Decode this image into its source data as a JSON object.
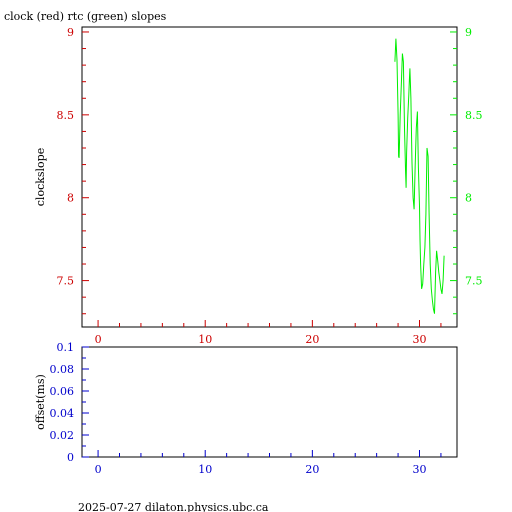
{
  "title": "clock (red) rtc (green) slopes",
  "footer": "2025-07-27  dilaton.physics.ubc.ca",
  "colors": {
    "red": "#cc0000",
    "green": "#00ee00",
    "blue": "#0000cc",
    "frame": "#000000"
  },
  "chart_data": [
    {
      "type": "line",
      "title": "clock (red) rtc (green) slopes",
      "ylabel": "clockslope",
      "xlabel": "",
      "xlim": [
        -1.5,
        33.5
      ],
      "ylim": [
        7.22,
        9.03
      ],
      "x_ticks": [
        0,
        10,
        20,
        30
      ],
      "x_tick_labels": [
        "0",
        "10",
        "20",
        "30"
      ],
      "y_ticks": [
        7.5,
        8,
        8.5,
        9
      ],
      "y_tick_labels": [
        "7.5",
        "8",
        "8.5",
        "9"
      ],
      "right_y_ticks": [
        7.5,
        8,
        8.5,
        9
      ],
      "right_y_tick_labels": [
        "7.5",
        "8",
        "8.5",
        "9"
      ],
      "grid": false,
      "series": [
        {
          "name": "rtc (green)",
          "color": "#00ee00",
          "x": [
            27.7,
            27.8,
            27.9,
            28.0,
            28.05,
            28.1,
            28.2,
            28.3,
            28.4,
            28.5,
            28.6,
            28.7,
            28.75,
            28.8,
            28.9,
            29.0,
            29.05,
            29.1,
            29.2,
            29.3,
            29.4,
            29.5,
            29.6,
            29.7,
            29.8,
            29.9,
            30.0,
            30.05,
            30.1,
            30.2,
            30.3,
            30.4,
            30.5,
            30.6,
            30.7,
            30.8,
            30.9,
            31.0,
            31.1,
            31.2,
            31.3,
            31.4,
            31.5,
            31.6,
            31.7,
            31.8,
            31.9,
            32.0,
            32.1,
            32.2,
            32.3
          ],
          "values": [
            8.82,
            8.96,
            8.83,
            8.5,
            8.25,
            8.24,
            8.5,
            8.68,
            8.87,
            8.82,
            8.42,
            8.15,
            8.06,
            8.27,
            8.48,
            8.62,
            8.7,
            8.78,
            8.6,
            8.21,
            8.0,
            7.93,
            8.2,
            8.42,
            8.52,
            8.18,
            7.95,
            7.75,
            7.6,
            7.45,
            7.48,
            7.6,
            7.7,
            7.9,
            8.3,
            8.25,
            7.9,
            7.6,
            7.45,
            7.38,
            7.33,
            7.3,
            7.55,
            7.68,
            7.62,
            7.55,
            7.5,
            7.45,
            7.42,
            7.5,
            7.65
          ]
        }
      ]
    },
    {
      "type": "line",
      "title": "",
      "ylabel": "offset(ms)",
      "xlabel": "",
      "xlim": [
        -1.5,
        33.5
      ],
      "ylim": [
        0,
        0.1
      ],
      "x_ticks": [
        0,
        10,
        20,
        30
      ],
      "x_tick_labels": [
        "0",
        "10",
        "20",
        "30"
      ],
      "y_ticks": [
        0,
        0.02,
        0.04,
        0.06,
        0.08,
        0.1
      ],
      "y_tick_labels": [
        "0",
        "0.02",
        "0.04",
        "0.06",
        "0.08",
        "0.1"
      ],
      "grid": false,
      "series": []
    }
  ]
}
